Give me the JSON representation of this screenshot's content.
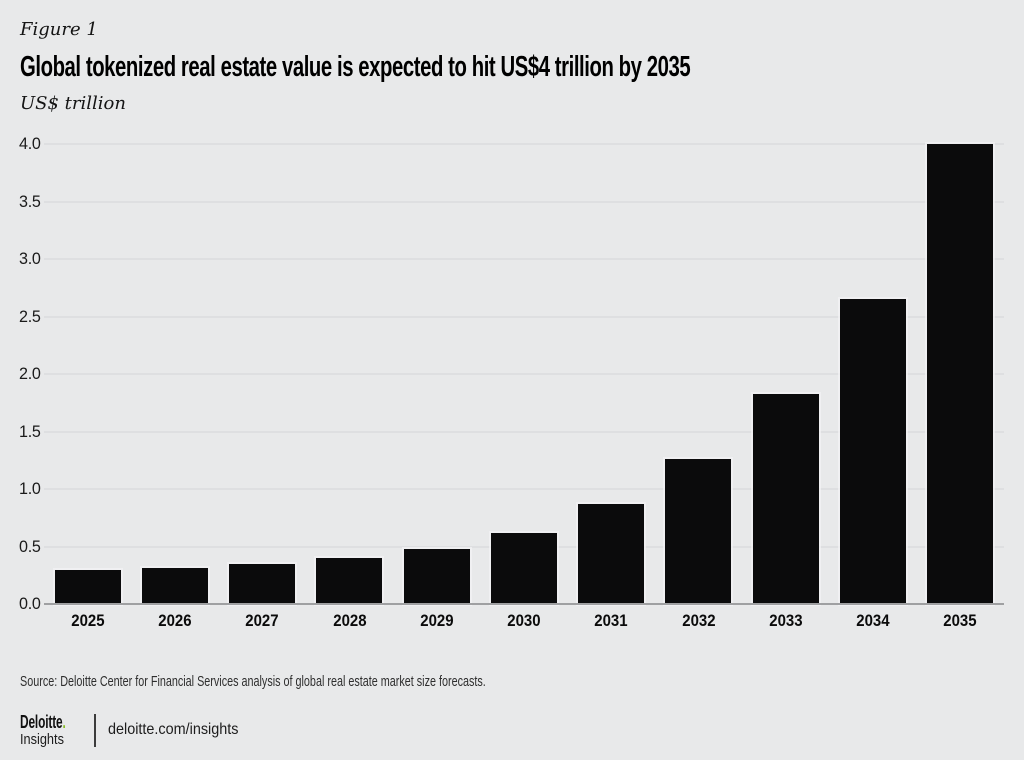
{
  "figure_label": "Figure 1",
  "title": "Global tokenized real estate value is expected to hit US$4 trillion by 2035",
  "subtitle": "US$ trillion",
  "source": "Source: Deloitte Center for Financial Services analysis of global real estate market size forecasts.",
  "footer": {
    "brand": "Deloitte",
    "brand_dot": ".",
    "brand_sub": "Insights",
    "url": "deloitte.com/insights"
  },
  "colors": {
    "background": "#e8e9ea",
    "bar": "#0b0b0c",
    "gridline": "#dedfe1",
    "axis": "#9fa0a2",
    "accent_green": "#86bc25"
  },
  "chart_data": {
    "type": "bar",
    "categories": [
      "2025",
      "2026",
      "2027",
      "2028",
      "2029",
      "2030",
      "2031",
      "2032",
      "2033",
      "2034",
      "2035"
    ],
    "values": [
      0.3,
      0.31,
      0.35,
      0.4,
      0.48,
      0.62,
      0.87,
      1.26,
      1.83,
      2.65,
      4.0
    ],
    "title": "Global tokenized real estate value is expected to hit US$4 trillion by 2035",
    "xlabel": "",
    "ylabel": "US$ trillion",
    "ylim": [
      0,
      4
    ],
    "ytick_step": 0.5,
    "yticks": [
      "0.0",
      "0.5",
      "1.0",
      "1.5",
      "2.0",
      "2.5",
      "3.0",
      "3.5",
      "4.0"
    ],
    "grid": true,
    "legend": false,
    "bar_color": "#0b0b0c"
  }
}
